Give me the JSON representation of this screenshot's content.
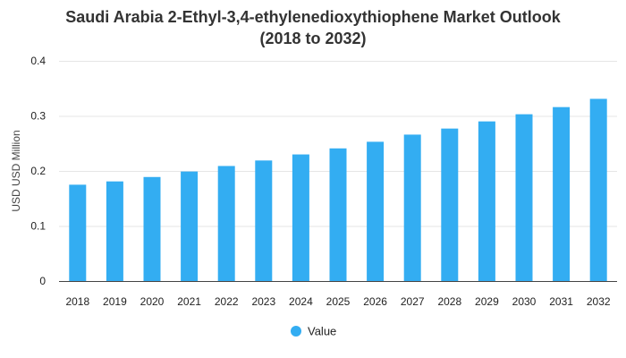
{
  "chart_data": {
    "type": "bar",
    "title_line1": "Saudi Arabia 2-Ethyl-3,4-ethylenedioxythiophene Market Outlook",
    "title_line2": "(2018 to 2032)",
    "xlabel": "",
    "ylabel": "USD USD Million",
    "categories": [
      "2018",
      "2019",
      "2020",
      "2021",
      "2022",
      "2023",
      "2024",
      "2025",
      "2026",
      "2027",
      "2028",
      "2029",
      "2030",
      "2031",
      "2032"
    ],
    "series": [
      {
        "name": "Value",
        "values": [
          0.175,
          0.181,
          0.189,
          0.199,
          0.209,
          0.219,
          0.23,
          0.241,
          0.253,
          0.266,
          0.277,
          0.29,
          0.303,
          0.316,
          0.331
        ]
      }
    ],
    "ylim": [
      0,
      0.4
    ],
    "yticks": [
      "0",
      "0.1",
      "0.2",
      "0.3",
      "0.4"
    ],
    "grid": true,
    "legend_position": "bottom",
    "bar_color": "#33adf2"
  }
}
